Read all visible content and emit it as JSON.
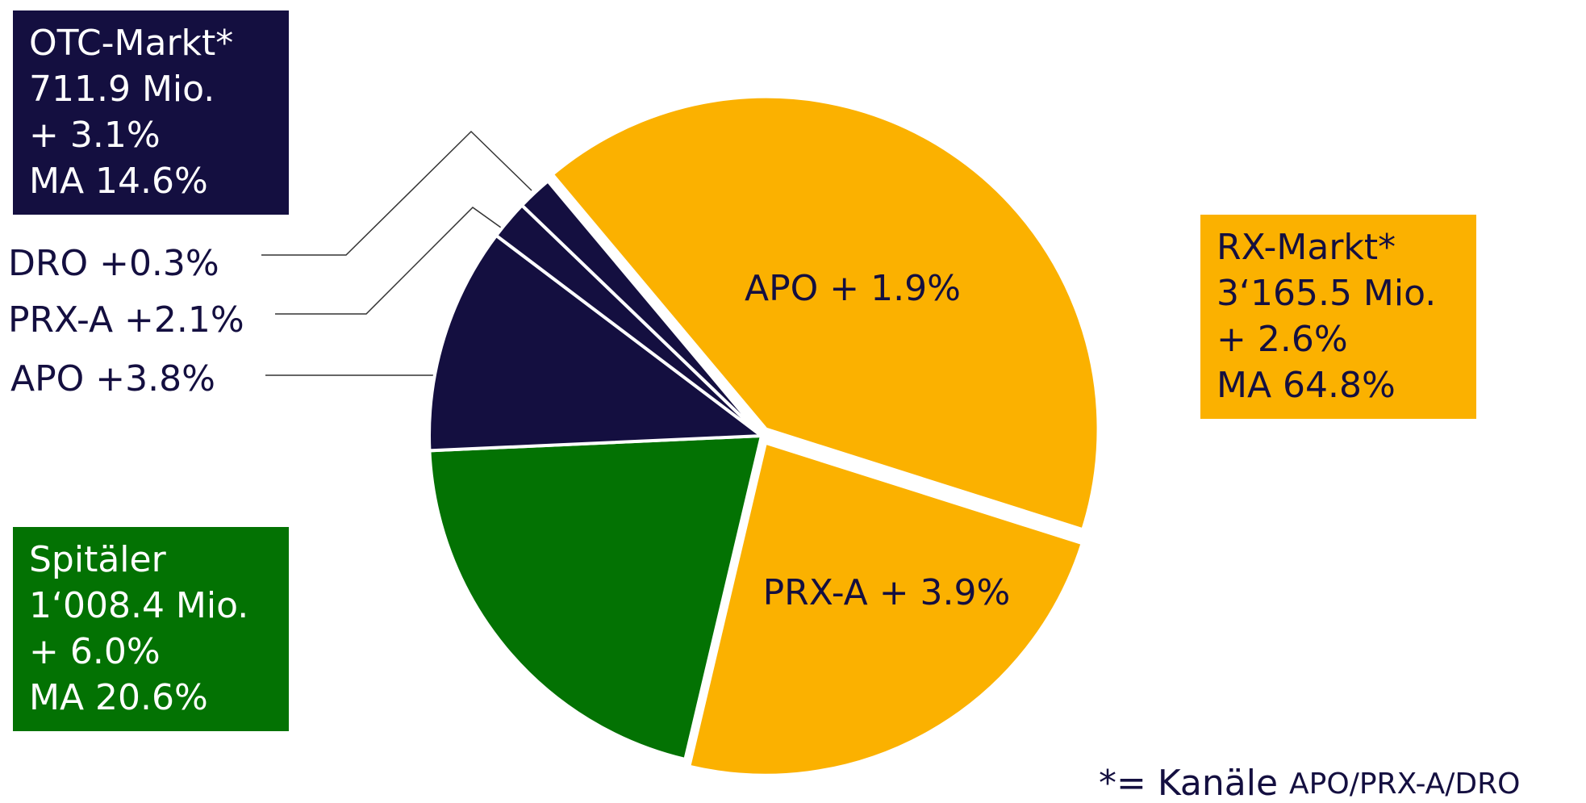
{
  "chart_data": {
    "type": "pie",
    "categories": [
      "APO",
      "PRX-A",
      "Spitäler",
      "APO",
      "PRX-A",
      "DRO"
    ],
    "values": [
      41.0,
      23.8,
      20.6,
      11.0,
      1.9,
      1.7
    ],
    "colors": [
      "#fbb100",
      "#fbb100",
      "#037203",
      "#140f40",
      "#140f40",
      "#140f40"
    ],
    "slice_labels": [
      "APO + 1.9%",
      "PRX-A + 3.9%",
      null,
      "APO +3.8%",
      "PRX-A +2.1%",
      "DRO +0.3%"
    ],
    "groups": [
      {
        "lines": [
          "OTC-Markt*",
          "711.9 Mio.",
          "+ 3.1%",
          "MA 14.6%"
        ],
        "color": "#140f40",
        "text_color": "#ffffff"
      },
      {
        "lines": [
          "RX-Markt*",
          "3‘165.5 Mio.",
          "+ 2.6%",
          "MA 64.8%"
        ],
        "color": "#fbb100",
        "text_color": "#140f40"
      },
      {
        "lines": [
          "Spitäler",
          "1‘008.4 Mio.",
          "+ 6.0%",
          "MA 20.6%"
        ],
        "color": "#037203",
        "text_color": "#ffffff"
      }
    ],
    "footnote": [
      "*= Kanäle",
      "APO/PRX-A/DRO"
    ]
  }
}
